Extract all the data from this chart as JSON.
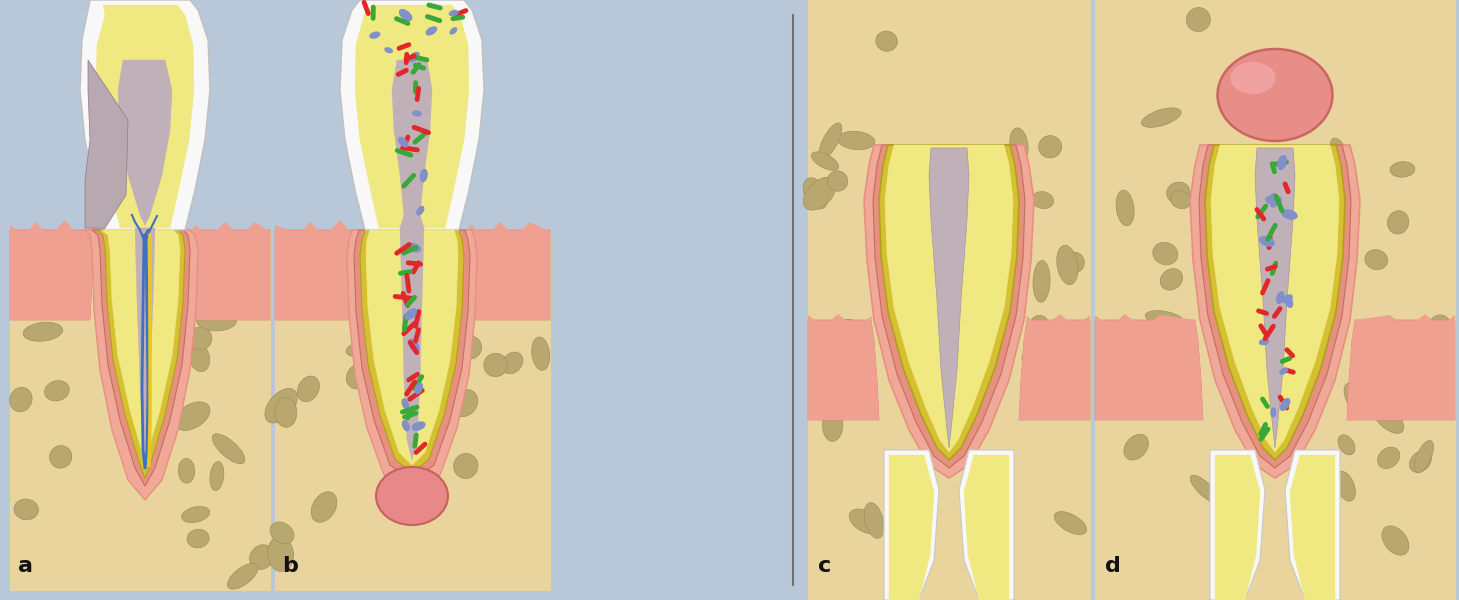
{
  "bg_color": "#b8c8d8",
  "bone_color": "#e8d49c",
  "bone_stone_color": "#b8a870",
  "dentin_color": "#f0e880",
  "pdl_pink_outer": "#f0a898",
  "pdl_pink_inner": "#e89080",
  "cementum_color": "#d4c030",
  "nerve_blue": "#4070c0",
  "nerve_yellow": "#e8c820",
  "bacteria_red": "#e02828",
  "bacteria_green": "#38a838",
  "bacteria_blue": "#8090c8",
  "lesion_pink": "#e88888",
  "lesion_edge": "#c86060",
  "gum_color": "#f0a090",
  "gum_fringe": "#e08080",
  "enamel_white": "#f8f8f8",
  "cavity_gray": "#b8a8b0",
  "canal_gray": "#c0b0b8",
  "pulp_gray": "#c8b8c0",
  "panel_labels": [
    "a",
    "b",
    "c",
    "d"
  ],
  "stone_color_edge": "#a09060"
}
